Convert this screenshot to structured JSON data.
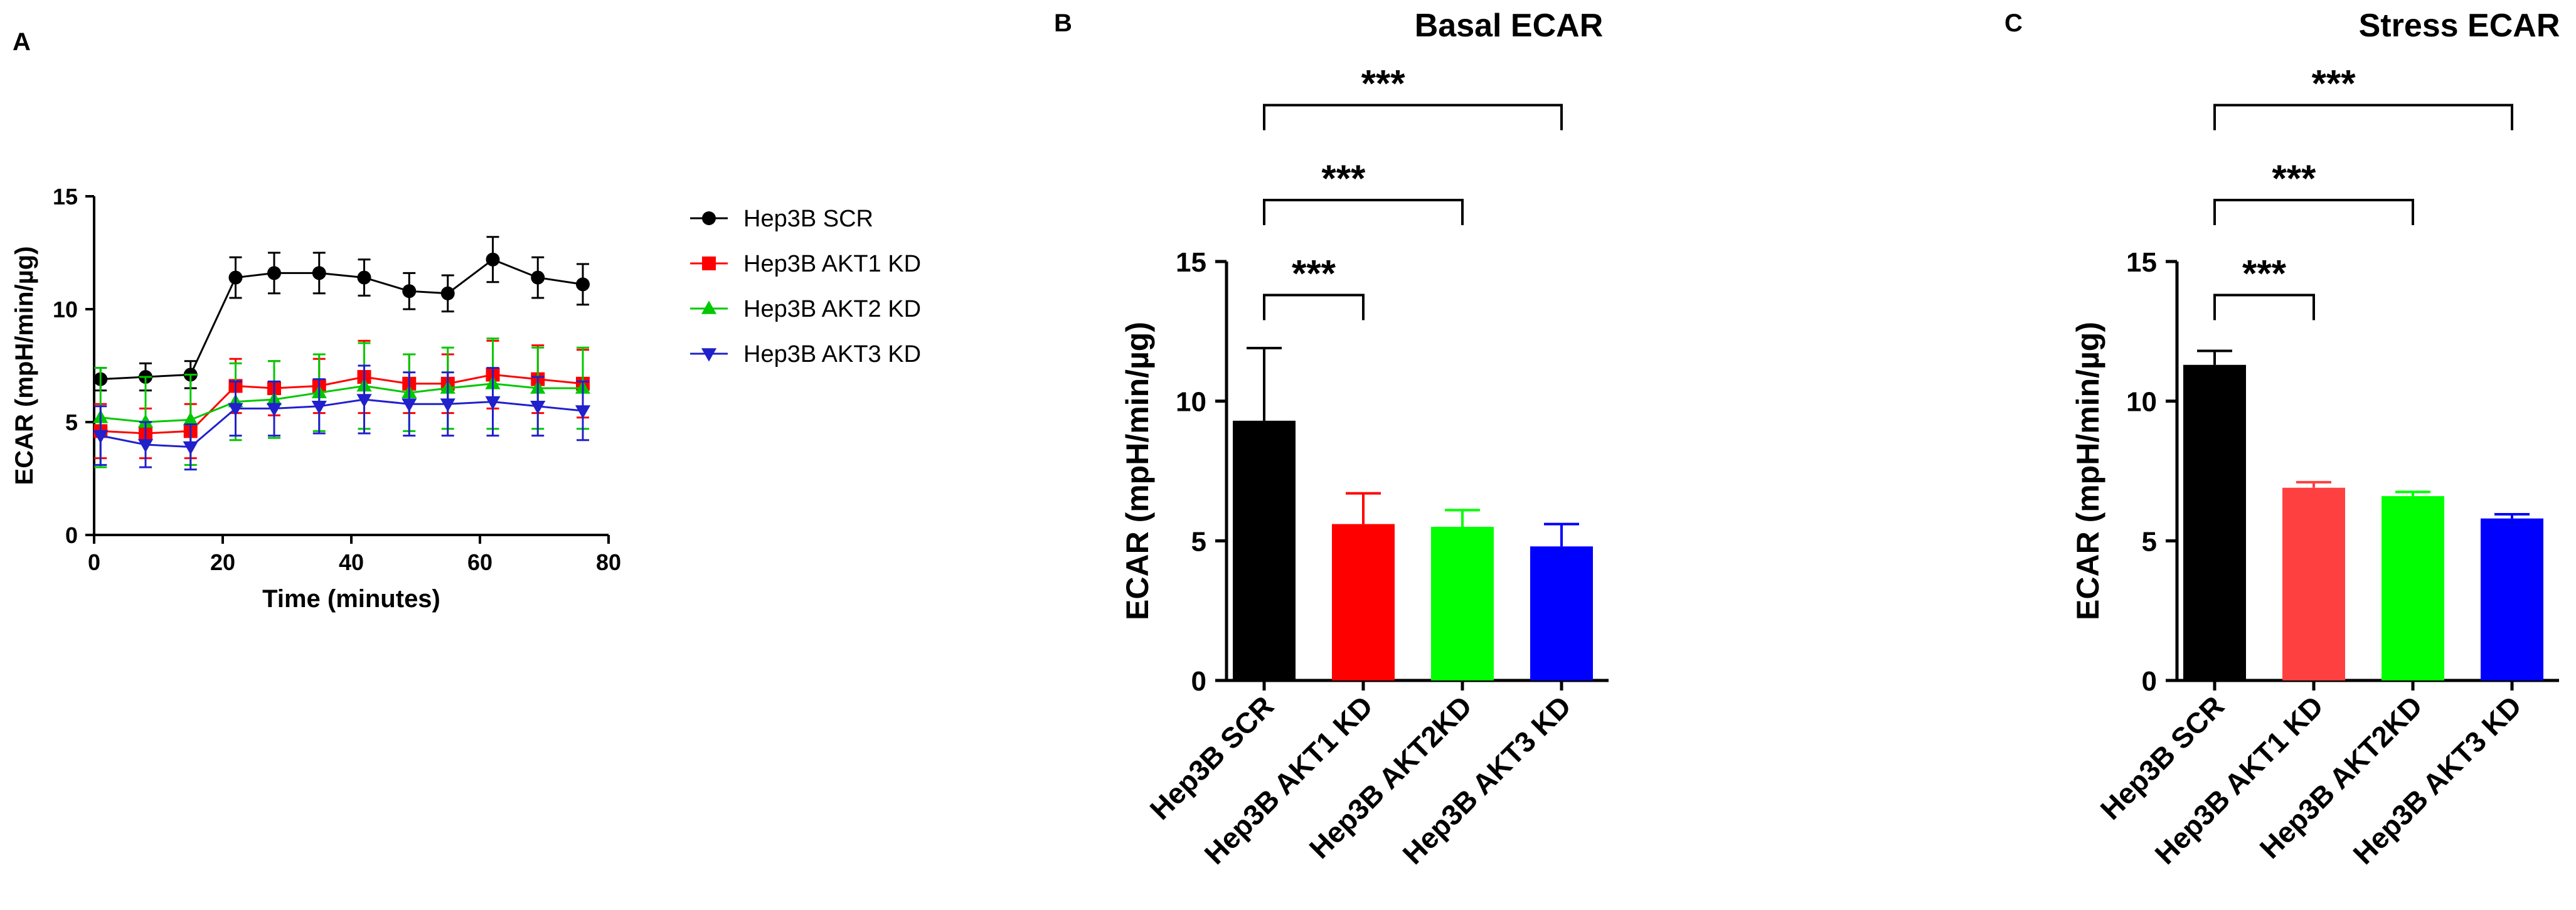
{
  "panels": {
    "a": {
      "letter": "A"
    },
    "b": {
      "letter": "B"
    },
    "c": {
      "letter": "C"
    }
  },
  "chart_data": [
    {
      "id": "A",
      "type": "line",
      "title": "",
      "xlabel": "Time (minutes)",
      "ylabel": "ECAR (mpH/min/µg)",
      "xlim": [
        0,
        80
      ],
      "ylim": [
        0,
        15
      ],
      "xticks": [
        0,
        20,
        40,
        60,
        80
      ],
      "yticks": [
        0,
        5,
        10,
        15
      ],
      "grid": false,
      "legend": "right",
      "x": [
        1,
        8,
        15,
        22,
        28,
        35,
        42,
        49,
        55,
        62,
        69,
        76
      ],
      "series": [
        {
          "name": "Hep3B SCR",
          "color": "#000000",
          "marker": "circle",
          "values": [
            6.9,
            7.0,
            7.1,
            11.4,
            11.6,
            11.6,
            11.4,
            10.8,
            10.7,
            12.2,
            11.4,
            11.1
          ],
          "errors": [
            0.5,
            0.6,
            0.6,
            0.9,
            0.9,
            0.9,
            0.8,
            0.8,
            0.8,
            1.0,
            0.9,
            0.9
          ]
        },
        {
          "name": "Hep3B AKT1 KD",
          "color": "#ff0000",
          "marker": "square",
          "values": [
            4.6,
            4.5,
            4.6,
            6.6,
            6.5,
            6.6,
            7.0,
            6.7,
            6.7,
            7.1,
            6.9,
            6.7
          ],
          "errors": [
            1.2,
            1.1,
            1.2,
            1.2,
            1.2,
            1.2,
            1.6,
            1.3,
            1.3,
            1.5,
            1.5,
            1.5
          ]
        },
        {
          "name": "Hep3B AKT2 KD",
          "color": "#00c800",
          "marker": "triangle-up",
          "values": [
            5.2,
            5.0,
            5.1,
            5.9,
            6.0,
            6.3,
            6.6,
            6.3,
            6.5,
            6.7,
            6.5,
            6.5
          ],
          "errors": [
            2.2,
            2.0,
            2.0,
            1.7,
            1.7,
            1.7,
            1.9,
            1.7,
            1.8,
            2.0,
            1.8,
            1.8
          ]
        },
        {
          "name": "Hep3B AKT3 KD",
          "color": "#2020cc",
          "marker": "triangle-down",
          "values": [
            4.4,
            4.0,
            3.9,
            5.6,
            5.6,
            5.7,
            6.0,
            5.8,
            5.8,
            5.9,
            5.7,
            5.5
          ],
          "errors": [
            1.3,
            1.0,
            1.0,
            1.2,
            1.2,
            1.2,
            1.5,
            1.4,
            1.4,
            1.5,
            1.3,
            1.3
          ]
        }
      ]
    },
    {
      "id": "B",
      "type": "bar",
      "title": "Basal ECAR",
      "xlabel": "",
      "ylabel": "ECAR (mpH/min/µg)",
      "ylim": [
        0,
        15
      ],
      "yticks": [
        0,
        5,
        10,
        15
      ],
      "categories": [
        "Hep3B SCR",
        "Hep3B AKT1 KD",
        "Hep3B AKT2KD",
        "Hep3B AKT3 KD"
      ],
      "values": [
        9.3,
        5.6,
        5.5,
        4.8
      ],
      "errors": [
        2.6,
        1.1,
        0.6,
        0.8
      ],
      "colors": [
        "#000000",
        "#ff0000",
        "#00ff00",
        "#0000ff"
      ],
      "significance": [
        {
          "from": 0,
          "to": 1,
          "label": "***",
          "y": 13.8
        },
        {
          "from": 0,
          "to": 2,
          "label": "***",
          "y": 17.2
        },
        {
          "from": 0,
          "to": 3,
          "label": "***",
          "y": 20.6
        }
      ]
    },
    {
      "id": "C",
      "type": "bar",
      "title": "Stress ECAR",
      "xlabel": "",
      "ylabel": "ECAR (mpH/min/µg)",
      "ylim": [
        0,
        15
      ],
      "yticks": [
        0,
        5,
        10,
        15
      ],
      "categories": [
        "Hep3B SCR",
        "Hep3B AKT1 KD",
        "Hep3B AKT2KD",
        "Hep3B AKT3 KD"
      ],
      "values": [
        11.3,
        6.9,
        6.6,
        5.8
      ],
      "errors": [
        0.5,
        0.2,
        0.15,
        0.15
      ],
      "colors": [
        "#000000",
        "#ff4040",
        "#00ff00",
        "#0000ff"
      ],
      "significance": [
        {
          "from": 0,
          "to": 1,
          "label": "***",
          "y": 13.8
        },
        {
          "from": 0,
          "to": 2,
          "label": "***",
          "y": 17.2
        },
        {
          "from": 0,
          "to": 3,
          "label": "***",
          "y": 20.6
        }
      ]
    }
  ]
}
